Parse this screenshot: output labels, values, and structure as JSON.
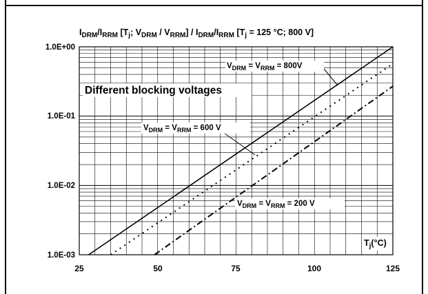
{
  "chart_data": {
    "type": "line",
    "title_parts": {
      "p1": "I",
      "p1s": "DRM",
      "p2": "/I",
      "p2s": "RRM",
      "p3": " [T",
      "p3s": "j",
      "p4": "; V",
      "p4s": "DRM",
      "p5": " / V",
      "p5s": "RRM",
      "p6": "] / I",
      "p6s": "DRM",
      "p7": "/I",
      "p7s": "RRM",
      "p8": " [T",
      "p8s": "j",
      "p9": " = 125 °C; 800 V]"
    },
    "xlabel_parts": {
      "a": "T",
      "sub": "j",
      "b": "(°C)"
    },
    "x_ticks": [
      "25",
      "50",
      "75",
      "100",
      "125"
    ],
    "y_ticks": [
      "1.0E+00",
      "1.0E-01",
      "1.0E-02",
      "1.0E-03"
    ],
    "xlim": [
      25,
      125
    ],
    "ylim": [
      0.001,
      1
    ],
    "y_scale": "log",
    "grid": true,
    "annotation_box": "Different blocking voltages",
    "series": [
      {
        "label": {
          "a": "V",
          "s1": "DRM",
          "b": " = V",
          "s2": "RRM",
          "c": " = 800V"
        },
        "style": "solid",
        "points": [
          [
            28,
            0.001
          ],
          [
            125,
            1.0
          ]
        ]
      },
      {
        "label": {
          "a": "V",
          "s1": "DRM",
          "b": " = V",
          "s2": "RRM",
          "c": " = 600 V"
        },
        "style": "dotted",
        "points": [
          [
            35,
            0.001
          ],
          [
            125,
            0.57
          ]
        ]
      },
      {
        "label": {
          "a": "V",
          "s1": "DRM",
          "b": " = V",
          "s2": "RRM",
          "c": " = 200 V"
        },
        "style": "dashdot",
        "points": [
          [
            49,
            0.001
          ],
          [
            125,
            0.27
          ]
        ]
      }
    ]
  }
}
